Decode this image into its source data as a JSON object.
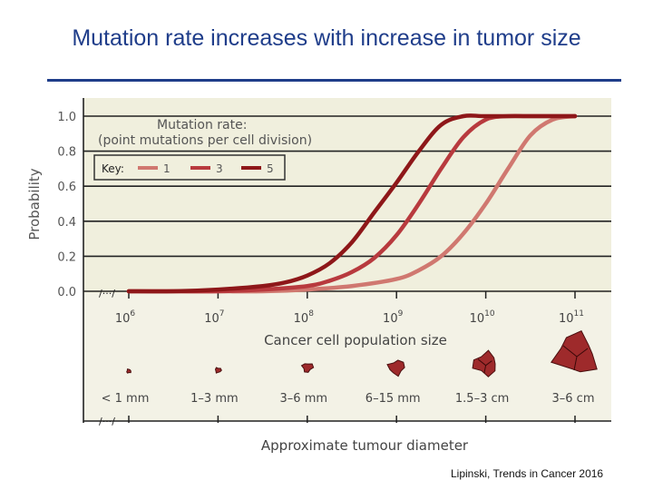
{
  "slide": {
    "title": "Mutation rate increases with increase in tumor size",
    "citation": "Lipinski, Trends in Cancer 2016"
  },
  "chart_data": {
    "type": "line",
    "ylabel": "Probability",
    "xlabel": "Cancer cell population size",
    "ylim": [
      0,
      1
    ],
    "xlim_log10": [
      6,
      11
    ],
    "y_ticks": [
      "0.0",
      "0.2",
      "0.4",
      "0.6",
      "0.8",
      "1.0"
    ],
    "y_tick_values": [
      0,
      0.2,
      0.4,
      0.6,
      0.8,
      1.0
    ],
    "x_ticks": [
      {
        "base": "10",
        "exp": "6"
      },
      {
        "base": "10",
        "exp": "7"
      },
      {
        "base": "10",
        "exp": "8"
      },
      {
        "base": "10",
        "exp": "9"
      },
      {
        "base": "10",
        "exp": "10"
      },
      {
        "base": "10",
        "exp": "11"
      }
    ],
    "grid": true,
    "legend_title": "Mutation rate:",
    "legend_subtitle": "(point mutations per cell division)",
    "legend_key_label": "Key:",
    "series": [
      {
        "name": "1",
        "color": "#d07870",
        "x_log10": [
          6,
          6.5,
          7,
          7.5,
          8,
          8.5,
          9,
          9.25,
          9.5,
          9.75,
          10,
          10.25,
          10.5,
          10.75,
          11
        ],
        "y": [
          0.0,
          0.0,
          0.0,
          0.0,
          0.01,
          0.03,
          0.07,
          0.12,
          0.2,
          0.33,
          0.5,
          0.7,
          0.89,
          0.98,
          1.0
        ]
      },
      {
        "name": "3",
        "color": "#b83a3e",
        "x_log10": [
          6,
          6.5,
          7,
          7.5,
          8,
          8.25,
          8.5,
          8.75,
          9,
          9.25,
          9.5,
          9.75,
          10,
          10.25,
          10.5,
          11
        ],
        "y": [
          0.0,
          0.0,
          0.0,
          0.01,
          0.03,
          0.06,
          0.11,
          0.19,
          0.32,
          0.5,
          0.7,
          0.88,
          0.98,
          1.0,
          1.0,
          1.0
        ]
      },
      {
        "name": "5",
        "color": "#8e1719",
        "x_log10": [
          6,
          6.5,
          7,
          7.5,
          7.75,
          8,
          8.25,
          8.5,
          8.75,
          9,
          9.25,
          9.5,
          9.75,
          10,
          10.5,
          11
        ],
        "y": [
          0.0,
          0.0,
          0.01,
          0.03,
          0.05,
          0.09,
          0.16,
          0.28,
          0.45,
          0.62,
          0.8,
          0.95,
          1.0,
          1.0,
          1.0,
          1.0
        ]
      }
    ],
    "lower_axis_label": "Approximate tumour diameter",
    "tumour_sizes": [
      "< 1 mm",
      "1–3 mm",
      "3–6 mm",
      "6–15 mm",
      "1.5–3 cm",
      "3–6 cm"
    ],
    "tumour_color": "#9e2a2b"
  }
}
